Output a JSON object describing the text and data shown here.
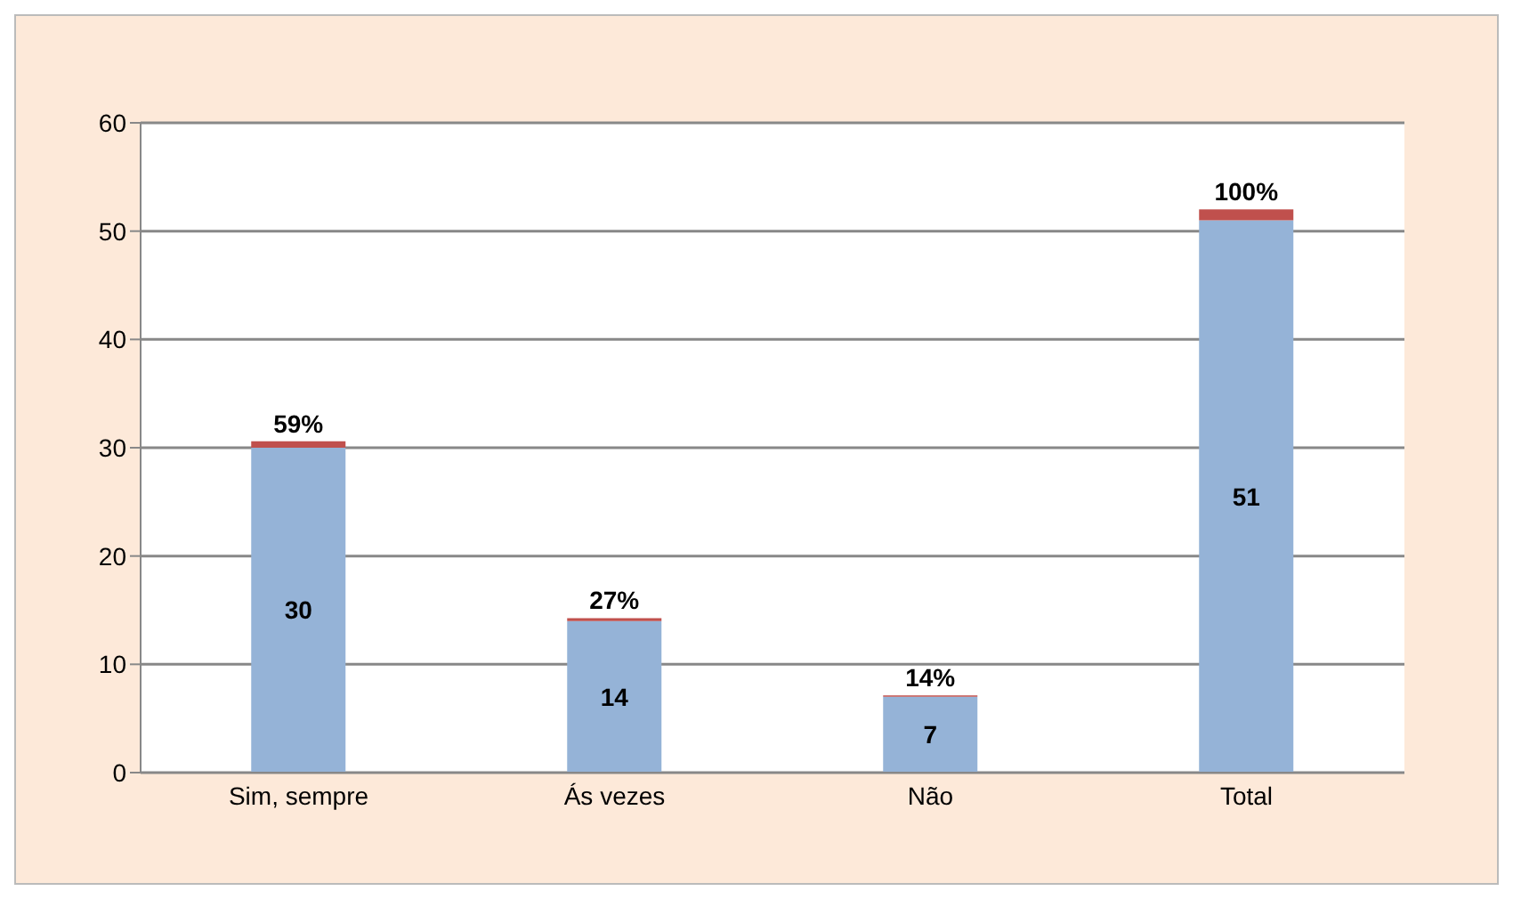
{
  "chart_data": {
    "type": "bar",
    "stacked": true,
    "categories": [
      "Sim, sempre",
      "Ás vezes",
      "Não",
      "Total"
    ],
    "series": [
      {
        "color": "#95b3d7",
        "values": [
          30,
          14,
          7,
          51
        ],
        "value_labels": [
          "30",
          "14",
          "7",
          "51"
        ]
      },
      {
        "color": "#c0504d",
        "values": [
          0.59,
          0.27,
          0.14,
          1
        ],
        "value_labels": [
          "59%",
          "27%",
          "14%",
          "100%"
        ]
      }
    ],
    "ylim": [
      0,
      60
    ],
    "yticks": [
      0,
      10,
      20,
      30,
      40,
      50,
      60
    ],
    "grid": "y"
  }
}
